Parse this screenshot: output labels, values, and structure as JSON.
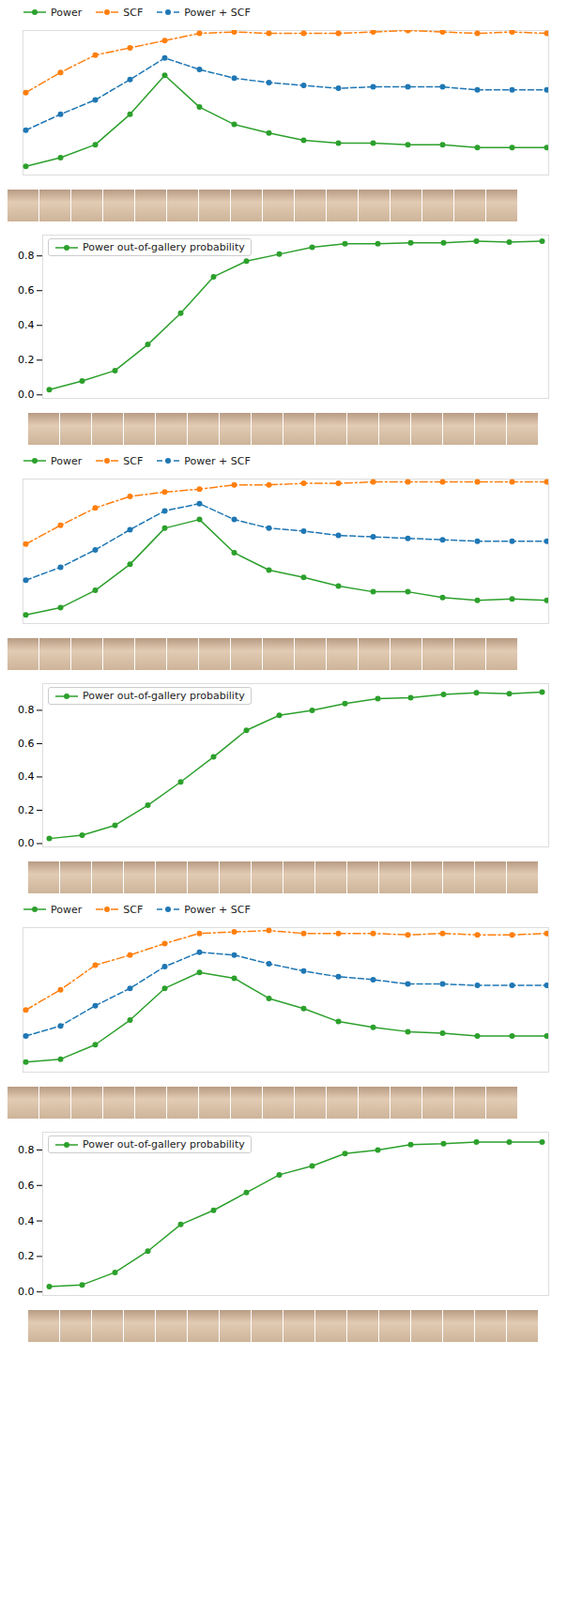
{
  "chart_data": [
    {
      "type": "line",
      "categories": [
        null,
        null,
        null,
        null,
        null,
        null,
        null,
        null,
        null,
        null,
        null,
        null,
        null,
        null,
        null,
        null
      ],
      "ylim": [
        0,
        1
      ],
      "tick_labels": false,
      "legend": "top",
      "series": [
        {
          "name": "Power",
          "color": "#2ca02c",
          "marker": "circle",
          "line_style": "solid",
          "values": [
            0.06,
            0.12,
            0.21,
            0.42,
            0.69,
            0.47,
            0.35,
            0.29,
            0.24,
            0.22,
            0.22,
            0.21,
            0.21,
            0.19,
            0.19,
            0.19
          ]
        },
        {
          "name": "SCF",
          "color": "#ff7f0e",
          "marker": "circle",
          "line_style": "dashdot",
          "values": [
            0.57,
            0.71,
            0.83,
            0.88,
            0.93,
            0.98,
            0.99,
            0.98,
            0.98,
            0.98,
            0.99,
            1.0,
            0.99,
            0.98,
            0.99,
            0.98
          ]
        },
        {
          "name": "Power + SCF",
          "color": "#1f77b4",
          "marker": "circle",
          "line_style": "dashed",
          "values": [
            0.31,
            0.42,
            0.52,
            0.66,
            0.81,
            0.73,
            0.67,
            0.64,
            0.62,
            0.6,
            0.61,
            0.61,
            0.61,
            0.59,
            0.59,
            0.59
          ]
        }
      ]
    },
    {
      "type": "line",
      "categories": [
        null,
        null,
        null,
        null,
        null,
        null,
        null,
        null,
        null,
        null,
        null,
        null,
        null,
        null,
        null,
        null
      ],
      "ylim": [
        -0.02,
        0.92
      ],
      "tick_labels": "y",
      "legend": "top-left",
      "yticks": [
        {
          "value": 0,
          "label": "0.0"
        },
        {
          "value": 0.2,
          "label": "0.2"
        },
        {
          "value": 0.4,
          "label": "0.4"
        },
        {
          "value": 0.6,
          "label": "0.6"
        },
        {
          "value": 0.8,
          "label": "0.8"
        }
      ],
      "series": [
        {
          "name": "Power out-of-gallery probability",
          "color": "#2ca02c",
          "marker": "circle",
          "line_style": "solid",
          "values": [
            0.03,
            0.08,
            0.14,
            0.29,
            0.47,
            0.68,
            0.77,
            0.81,
            0.85,
            0.87,
            0.87,
            0.875,
            0.875,
            0.885,
            0.88,
            0.885
          ]
        }
      ]
    },
    {
      "type": "line",
      "categories": [
        null,
        null,
        null,
        null,
        null,
        null,
        null,
        null,
        null,
        null,
        null,
        null,
        null,
        null,
        null,
        null
      ],
      "ylim": [
        0,
        1
      ],
      "tick_labels": false,
      "legend": "top",
      "series": [
        {
          "name": "Power",
          "color": "#2ca02c",
          "marker": "circle",
          "line_style": "solid",
          "values": [
            0.06,
            0.11,
            0.23,
            0.41,
            0.66,
            0.72,
            0.49,
            0.37,
            0.32,
            0.26,
            0.22,
            0.22,
            0.18,
            0.16,
            0.17,
            0.16
          ]
        },
        {
          "name": "SCF",
          "color": "#ff7f0e",
          "marker": "circle",
          "line_style": "dashdot",
          "values": [
            0.55,
            0.68,
            0.8,
            0.88,
            0.91,
            0.93,
            0.96,
            0.96,
            0.97,
            0.97,
            0.98,
            0.98,
            0.98,
            0.98,
            0.98,
            0.98
          ]
        },
        {
          "name": "Power + SCF",
          "color": "#1f77b4",
          "marker": "circle",
          "line_style": "dashed",
          "values": [
            0.3,
            0.39,
            0.51,
            0.65,
            0.78,
            0.83,
            0.72,
            0.66,
            0.64,
            0.61,
            0.6,
            0.59,
            0.58,
            0.57,
            0.57,
            0.57
          ]
        }
      ]
    },
    {
      "type": "line",
      "categories": [
        null,
        null,
        null,
        null,
        null,
        null,
        null,
        null,
        null,
        null,
        null,
        null,
        null,
        null,
        null,
        null
      ],
      "ylim": [
        -0.02,
        0.96
      ],
      "tick_labels": "y",
      "legend": "top-left",
      "yticks": [
        {
          "value": 0,
          "label": "0.0"
        },
        {
          "value": 0.2,
          "label": "0.2"
        },
        {
          "value": 0.4,
          "label": "0.4"
        },
        {
          "value": 0.6,
          "label": "0.6"
        },
        {
          "value": 0.8,
          "label": "0.8"
        }
      ],
      "series": [
        {
          "name": "Power out-of-gallery probability",
          "color": "#2ca02c",
          "marker": "circle",
          "line_style": "solid",
          "values": [
            0.03,
            0.05,
            0.11,
            0.23,
            0.37,
            0.52,
            0.68,
            0.77,
            0.8,
            0.84,
            0.87,
            0.875,
            0.895,
            0.905,
            0.9,
            0.91
          ]
        }
      ]
    },
    {
      "type": "line",
      "categories": [
        null,
        null,
        null,
        null,
        null,
        null,
        null,
        null,
        null,
        null,
        null,
        null,
        null,
        null,
        null,
        null
      ],
      "ylim": [
        0,
        1
      ],
      "tick_labels": false,
      "legend": "top",
      "series": [
        {
          "name": "Power",
          "color": "#2ca02c",
          "marker": "circle",
          "line_style": "solid",
          "values": [
            0.07,
            0.09,
            0.19,
            0.36,
            0.58,
            0.69,
            0.65,
            0.51,
            0.44,
            0.35,
            0.31,
            0.28,
            0.27,
            0.25,
            0.25,
            0.25
          ]
        },
        {
          "name": "SCF",
          "color": "#ff7f0e",
          "marker": "circle",
          "line_style": "dashdot",
          "values": [
            0.43,
            0.57,
            0.74,
            0.81,
            0.89,
            0.96,
            0.97,
            0.98,
            0.96,
            0.96,
            0.96,
            0.95,
            0.96,
            0.95,
            0.95,
            0.96
          ]
        },
        {
          "name": "Power + SCF",
          "color": "#1f77b4",
          "marker": "circle",
          "line_style": "dashed",
          "values": [
            0.25,
            0.32,
            0.46,
            0.58,
            0.73,
            0.83,
            0.81,
            0.75,
            0.7,
            0.66,
            0.64,
            0.61,
            0.61,
            0.6,
            0.6,
            0.6
          ]
        }
      ]
    },
    {
      "type": "line",
      "categories": [
        null,
        null,
        null,
        null,
        null,
        null,
        null,
        null,
        null,
        null,
        null,
        null,
        null,
        null,
        null,
        null
      ],
      "ylim": [
        -0.02,
        0.9
      ],
      "tick_labels": "y",
      "legend": "top-left",
      "yticks": [
        {
          "value": 0,
          "label": "0.0"
        },
        {
          "value": 0.2,
          "label": "0.2"
        },
        {
          "value": 0.4,
          "label": "0.4"
        },
        {
          "value": 0.6,
          "label": "0.6"
        },
        {
          "value": 0.8,
          "label": "0.8"
        }
      ],
      "series": [
        {
          "name": "Power out-of-gallery probability",
          "color": "#2ca02c",
          "marker": "circle",
          "line_style": "solid",
          "values": [
            0.03,
            0.04,
            0.11,
            0.23,
            0.38,
            0.46,
            0.56,
            0.66,
            0.71,
            0.78,
            0.8,
            0.83,
            0.835,
            0.845,
            0.845,
            0.845
          ]
        }
      ]
    }
  ]
}
